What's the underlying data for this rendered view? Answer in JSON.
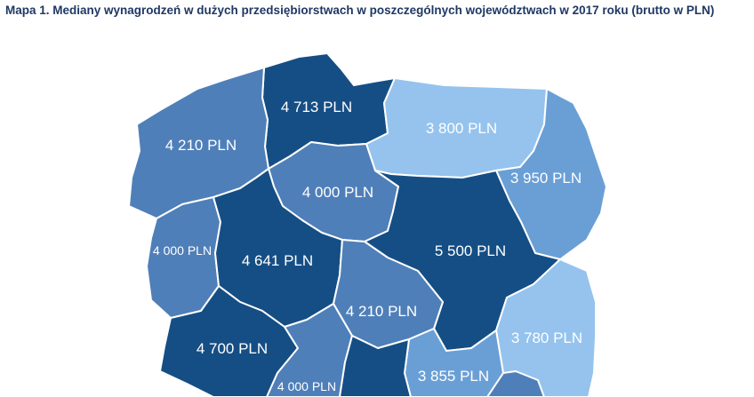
{
  "title": "Mapa 1. Mediany wynagrodzeń w dużych przedsiębiorstwach w poszczególnych województwach w 2017 roku (brutto w PLN)",
  "colors": {
    "dark": "#154e84",
    "medium": "#4f7fb9",
    "light": "#6a9fd6",
    "lightest": "#95c3ee"
  },
  "regions": [
    {
      "label": "4 713 PLN",
      "shade": "dark"
    },
    {
      "label": "3 800 PLN",
      "shade": "lightest"
    },
    {
      "label": "4 210 PLN",
      "shade": "medium"
    },
    {
      "label": "4 000 PLN",
      "shade": "medium"
    },
    {
      "label": "3 950 PLN",
      "shade": "light"
    },
    {
      "label": "4 000 PLN",
      "shade": "medium"
    },
    {
      "label": "4 641 PLN",
      "shade": "dark"
    },
    {
      "label": "5 500 PLN",
      "shade": "dark"
    },
    {
      "label": "4 210 PLN",
      "shade": "medium"
    },
    {
      "label": "3 780 PLN",
      "shade": "lightest"
    },
    {
      "label": "4 700 PLN",
      "shade": "dark"
    },
    {
      "label": "3 855 PLN",
      "shade": "light"
    },
    {
      "label": "4 000 PLN",
      "shade": "medium"
    },
    {
      "label": "",
      "shade": "dark"
    },
    {
      "label": "",
      "shade": "medium"
    }
  ]
}
